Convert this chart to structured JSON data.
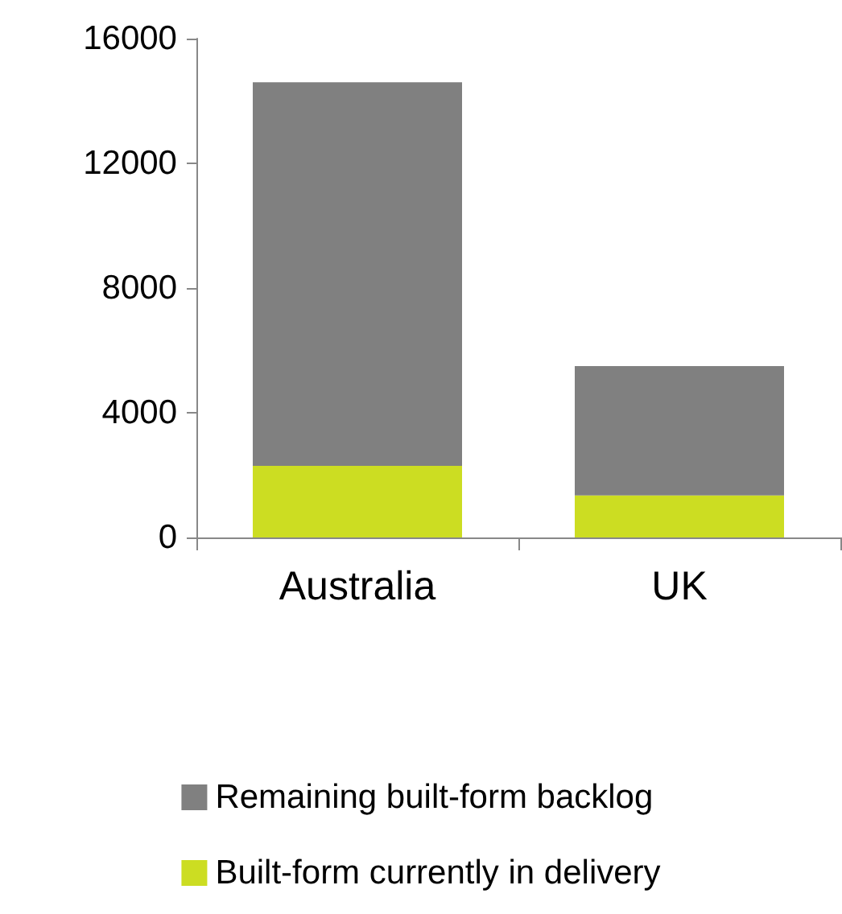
{
  "chart_data": {
    "type": "bar",
    "stacked": true,
    "categories": [
      "Australia",
      "UK"
    ],
    "series": [
      {
        "name": "Built-form currently in delivery",
        "color": "#ccdd22",
        "values": [
          2300,
          1350
        ]
      },
      {
        "name": "Remaining built-form backlog",
        "color": "#808080",
        "values": [
          12300,
          4150
        ]
      }
    ],
    "ylim": [
      0,
      16000
    ],
    "yticks": [
      0,
      4000,
      8000,
      12000,
      16000
    ],
    "grid": false,
    "legend": "bottom"
  }
}
